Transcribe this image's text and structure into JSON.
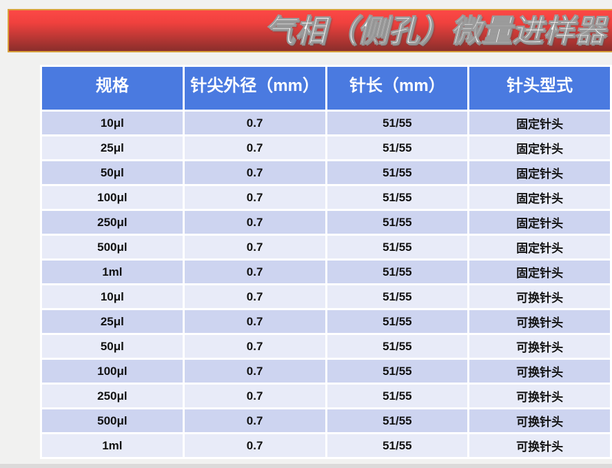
{
  "banner": {
    "title": "气相（侧孔）微量进样器"
  },
  "colors": {
    "page_bg": "#f1f1f0",
    "banner_border": "#d9a23c",
    "banner_gradient_top": "#fc4846",
    "banner_gradient_mid": "#f0413e",
    "banner_gradient_low": "#b23633",
    "banner_gradient_bottom": "#8a2e2b",
    "header_bg": "#4a7ae0",
    "header_text": "#ffffff",
    "row_dark": "#cdd4f0",
    "row_light": "#e8ebf8",
    "cell_text": "#111111",
    "bottom_band": "#dcdada"
  },
  "table": {
    "columns": [
      "规格",
      "针尖外径（mm）",
      "针长（mm）",
      "针头型式"
    ],
    "rows": [
      [
        "10μl",
        "0.7",
        "51/55",
        "固定针头"
      ],
      [
        "25μl",
        "0.7",
        "51/55",
        "固定针头"
      ],
      [
        "50μl",
        "0.7",
        "51/55",
        "固定针头"
      ],
      [
        "100μl",
        "0.7",
        "51/55",
        "固定针头"
      ],
      [
        "250μl",
        "0.7",
        "51/55",
        "固定针头"
      ],
      [
        "500μl",
        "0.7",
        "51/55",
        "固定针头"
      ],
      [
        "1ml",
        "0.7",
        "51/55",
        "固定针头"
      ],
      [
        "10μl",
        "0.7",
        "51/55",
        "可换针头"
      ],
      [
        "25μl",
        "0.7",
        "51/55",
        "可换针头"
      ],
      [
        "50μl",
        "0.7",
        "51/55",
        "可换针头"
      ],
      [
        "100μl",
        "0.7",
        "51/55",
        "可换针头"
      ],
      [
        "250μl",
        "0.7",
        "51/55",
        "可换针头"
      ],
      [
        "500μl",
        "0.7",
        "51/55",
        "可换针头"
      ],
      [
        "1ml",
        "0.7",
        "51/55",
        "可换针头"
      ]
    ]
  }
}
